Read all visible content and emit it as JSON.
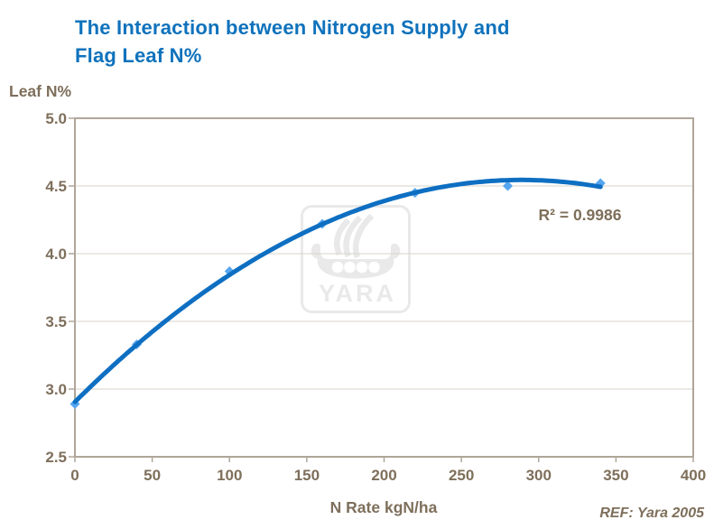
{
  "page": {
    "title_line1": "The Interaction between Nitrogen Supply and",
    "title_line2": "Flag Leaf N%",
    "ref_note": "REF: Yara 2005"
  },
  "watermark": {
    "label": "YARA"
  },
  "chart_data": {
    "type": "scatter",
    "title": "The Interaction between Nitrogen Supply and Flag Leaf N%",
    "xlabel": "N Rate kgN/ha",
    "ylabel": "Leaf N%",
    "x": [
      0,
      40,
      100,
      160,
      220,
      280,
      340
    ],
    "y": [
      2.89,
      3.33,
      3.87,
      4.22,
      4.45,
      4.5,
      4.52
    ],
    "xlim": [
      0,
      400
    ],
    "ylim": [
      2.5,
      5.0
    ],
    "xticks": [
      0,
      50,
      100,
      150,
      200,
      250,
      300,
      350,
      400
    ],
    "yticks": [
      2.5,
      3.0,
      3.5,
      4.0,
      4.5,
      5.0
    ],
    "grid": "horizontal",
    "legend": "none",
    "marker": "diamond",
    "trendline": {
      "kind": "quadratic",
      "annotation": "R² = 0.9986",
      "x_end": 340
    },
    "colors": {
      "line": "#0E6FC2",
      "marker": "#56A6F0",
      "axis": "#AFA699",
      "gridline": "#D9D3C9",
      "tick_label": "#7E6F5B",
      "title": "#0F72BC",
      "watermark": "#E9E9E9"
    }
  }
}
